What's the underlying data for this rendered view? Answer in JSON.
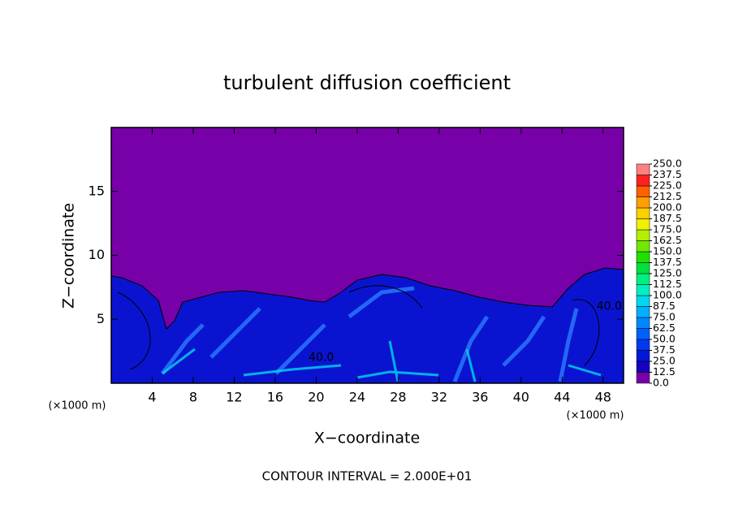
{
  "chart_data": {
    "type": "contour",
    "title": "turbulent diffusion coefficient",
    "xlabel": "X−coordinate",
    "ylabel": "Z−coordinate",
    "x_unit_left": "(×1000 m)",
    "x_unit_right": "(×1000 m)",
    "footer": "CONTOUR INTERVAL = 2.000E+01",
    "xlim": [
      0,
      50
    ],
    "ylim": [
      0,
      20
    ],
    "xticks": [
      4,
      8,
      12,
      16,
      20,
      24,
      28,
      32,
      36,
      40,
      44,
      48
    ],
    "yticks": [
      5,
      10,
      15
    ],
    "annotations": [
      {
        "text": "40.0",
        "x": 20.5,
        "y": 2
      },
      {
        "text": "40.0",
        "x": 48.6,
        "y": 6
      }
    ],
    "colorbar": {
      "ticks": [
        {
          "value": 0,
          "label": "0.0"
        },
        {
          "value": 12.5,
          "label": "12.5"
        },
        {
          "value": 25,
          "label": "25.0"
        },
        {
          "value": 37.5,
          "label": "37.5"
        },
        {
          "value": 50,
          "label": "50.0"
        },
        {
          "value": 62.5,
          "label": "62.5"
        },
        {
          "value": 75,
          "label": "75.0"
        },
        {
          "value": 87.5,
          "label": "87.5"
        },
        {
          "value": 100,
          "label": "100.0"
        },
        {
          "value": 112.5,
          "label": "112.5"
        },
        {
          "value": 125,
          "label": "125.0"
        },
        {
          "value": 137.5,
          "label": "137.5"
        },
        {
          "value": 150,
          "label": "150.0"
        },
        {
          "value": 162.5,
          "label": "162.5"
        },
        {
          "value": 175,
          "label": "175.0"
        },
        {
          "value": 187.5,
          "label": "187.5"
        },
        {
          "value": 200,
          "label": "200.0"
        },
        {
          "value": 212.5,
          "label": "212.5"
        },
        {
          "value": 225,
          "label": "225.0"
        },
        {
          "value": 237.5,
          "label": "237.5"
        },
        {
          "value": 250,
          "label": "250.0"
        }
      ],
      "colors": [
        "#7800a8",
        "#1800c0",
        "#0018d8",
        "#0038f0",
        "#0060ff",
        "#0088ff",
        "#00b0ff",
        "#00d8f0",
        "#00f0c0",
        "#00f080",
        "#00e040",
        "#20e000",
        "#70e800",
        "#b0f000",
        "#f0f000",
        "#ffd000",
        "#ffa000",
        "#ff6000",
        "#ff2020",
        "#ff8080"
      ]
    }
  }
}
